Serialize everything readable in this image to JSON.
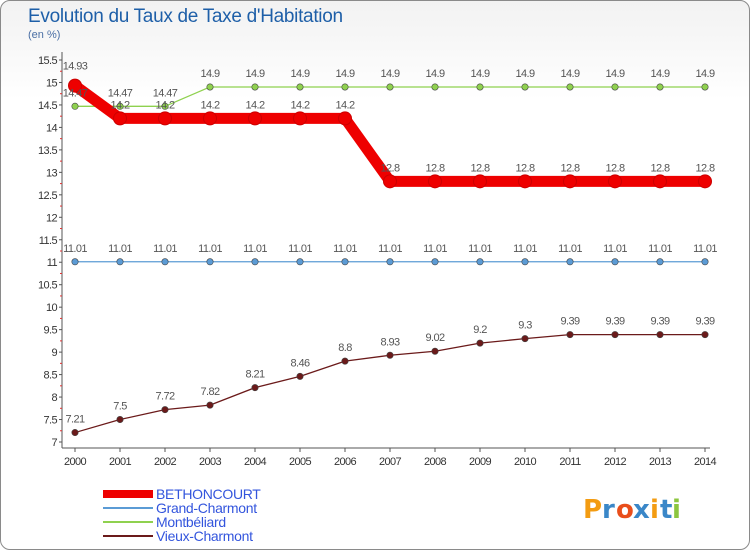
{
  "chart_data": {
    "type": "line",
    "title": "Evolution du Taux de Taxe d'Habitation",
    "unit_label": "(en %)",
    "xlabel": "",
    "ylabel": "",
    "ylim": [
      7,
      15.5
    ],
    "y_step": 0.5,
    "grid": false,
    "legend_position": "bottom-left",
    "categories": [
      "2000",
      "2001",
      "2002",
      "2003",
      "2004",
      "2005",
      "2006",
      "2007",
      "2008",
      "2009",
      "2010",
      "2011",
      "2012",
      "2013",
      "2014"
    ],
    "y_ticks": [
      "7",
      "7.5",
      "8",
      "8.5",
      "9",
      "9.5",
      "10",
      "10.5",
      "11",
      "11.5",
      "12",
      "12.5",
      "13",
      "13.5",
      "14",
      "14.5",
      "15",
      "15.5"
    ],
    "series": [
      {
        "name": "BETHONCOURT",
        "color": "#ee0000",
        "values": [
          14.93,
          14.2,
          14.2,
          14.2,
          14.2,
          14.2,
          14.2,
          12.8,
          12.8,
          12.8,
          12.8,
          12.8,
          12.8,
          12.8,
          12.8
        ],
        "labels": [
          "14.93",
          "14.2",
          "14.2",
          "14.2",
          "14.2",
          "14.2",
          "14.2",
          "12.8",
          "12.8",
          "12.8",
          "12.8",
          "12.8",
          "12.8",
          "12.8",
          "12.8"
        ]
      },
      {
        "name": "Grand-Charmont",
        "color": "#5b9bd5",
        "values": [
          11.01,
          11.01,
          11.01,
          11.01,
          11.01,
          11.01,
          11.01,
          11.01,
          11.01,
          11.01,
          11.01,
          11.01,
          11.01,
          11.01,
          11.01
        ],
        "labels": [
          "11.01",
          "11.01",
          "11.01",
          "11.01",
          "11.01",
          "11.01",
          "11.01",
          "11.01",
          "11.01",
          "11.01",
          "11.01",
          "11.01",
          "11.01",
          "11.01",
          "11.01"
        ]
      },
      {
        "name": "Montbéliard",
        "color": "#8fd14f",
        "values": [
          14.47,
          14.47,
          14.47,
          14.9,
          14.9,
          14.9,
          14.9,
          14.9,
          14.9,
          14.9,
          14.9,
          14.9,
          14.9,
          14.9,
          14.9
        ],
        "labels": [
          "14.47",
          "14.47",
          "14.47",
          "14.9",
          "14.9",
          "14.9",
          "14.9",
          "14.9",
          "14.9",
          "14.9",
          "14.9",
          "14.9",
          "14.9",
          "14.9",
          "14.9"
        ]
      },
      {
        "name": "Vieux-Charmont",
        "color": "#6b1a1a",
        "values": [
          7.21,
          7.5,
          7.72,
          7.82,
          8.21,
          8.46,
          8.8,
          8.93,
          9.02,
          9.2,
          9.3,
          9.39,
          9.39,
          9.39,
          9.39
        ],
        "labels": [
          "7.21",
          "7.5",
          "7.72",
          "7.82",
          "8.21",
          "8.46",
          "8.8",
          "8.93",
          "9.02",
          "9.2",
          "9.3",
          "9.39",
          "9.39",
          "9.39",
          "9.39"
        ]
      }
    ],
    "legend_text_color": "#3355dd"
  },
  "logo": {
    "letters": [
      "P",
      "r",
      "o",
      "x",
      "i",
      "t",
      "i"
    ],
    "colors": [
      "#f39c12",
      "#3a87c8",
      "#e94e1b",
      "#3a87c8",
      "#f39c12",
      "#3a87c8",
      "#8cc63f"
    ]
  }
}
